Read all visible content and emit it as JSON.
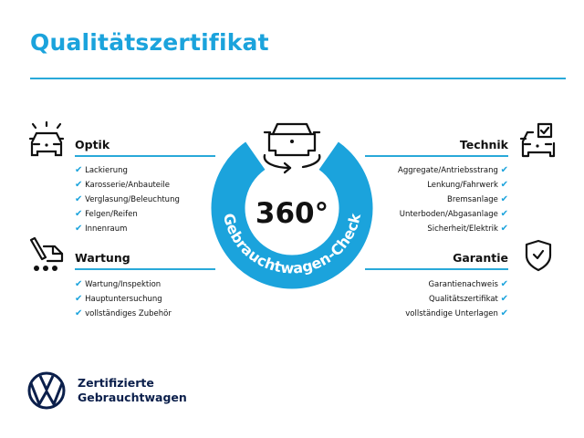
{
  "title": "Qualitätszertifikat",
  "accent_color": "#1ba3dc",
  "center": {
    "big": "360°",
    "ring_text": "Gebrauchtwagen-Check",
    "icon": "car-rotate-icon"
  },
  "sections": {
    "optik": {
      "heading": "Optik",
      "icon": "car-lights-icon",
      "items": [
        "Lackierung",
        "Karosserie/Anbauteile",
        "Verglasung/Beleuchtung",
        "Felgen/Reifen",
        "Innenraum"
      ]
    },
    "wartung": {
      "heading": "Wartung",
      "icon": "service-van-icon",
      "items": [
        "Wartung/Inspektion",
        "Hauptuntersuchung",
        "vollständiges Zubehör"
      ]
    },
    "technik": {
      "heading": "Technik",
      "icon": "car-checkbox-icon",
      "items": [
        "Aggregate/Antriebsstrang",
        "Lenkung/Fahrwerk",
        "Bremsanlage",
        "Unterboden/Abgasanlage",
        "Sicherheit/Elektrik"
      ]
    },
    "garantie": {
      "heading": "Garantie",
      "icon": "shield-check-icon",
      "items": [
        "Garantienachweis",
        "Qualitätszertifikat",
        "vollständige Unterlagen"
      ]
    }
  },
  "check_mark": "✔",
  "brand": {
    "line1": "Zertifizierte",
    "line2": "Gebrauchtwagen",
    "logo": "vw-logo",
    "color": "#0b1f4b"
  }
}
